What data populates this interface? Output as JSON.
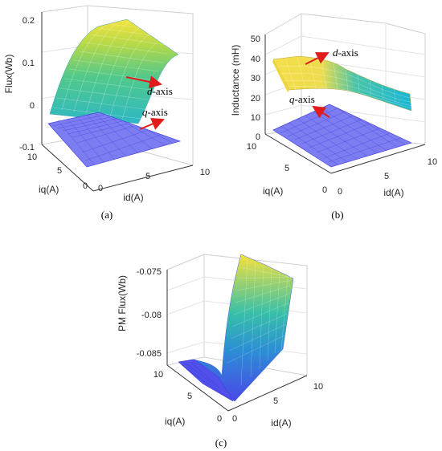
{
  "chart_data": [
    {
      "panel": "(a)",
      "type": "surface",
      "caption": "(a)",
      "xlabel": "id(A)",
      "ylabel": "iq(A)",
      "zlabel": "Flux(Wb)",
      "xlim": [
        0,
        10
      ],
      "ylim": [
        0,
        10
      ],
      "zlim": [
        -0.1,
        0.2
      ],
      "xticks": [
        "0",
        "5",
        "10"
      ],
      "yticks": [
        "0",
        "5",
        "10"
      ],
      "zticks": [
        "-0.1",
        "0",
        "0.1",
        "0.2"
      ],
      "grid": true,
      "annotations": [
        {
          "italic": "d",
          "text": "-axis",
          "points_to": "d-axis flux surface"
        },
        {
          "italic": "q",
          "text": "-axis",
          "points_to": "q-axis flux surface"
        }
      ],
      "series": [
        {
          "name": "d-axis",
          "function": "rises from about 0.0 at id=0 to about 0.16 at id=10, saturating above id≈6; nearly independent of iq",
          "id_samples": [
            0,
            2,
            4,
            6,
            8,
            10
          ],
          "flux_Wb": [
            0.0,
            0.07,
            0.12,
            0.15,
            0.16,
            0.165
          ]
        },
        {
          "name": "q-axis",
          "function": "flat plane at about -0.05 Wb across id and iq",
          "id_samples": [
            0,
            10
          ],
          "flux_Wb": [
            -0.05,
            -0.05
          ]
        }
      ]
    },
    {
      "panel": "(b)",
      "type": "surface",
      "caption": "(b)",
      "xlabel": "id(A)",
      "ylabel": "iq(A)",
      "zlabel": "Inductance (mH)",
      "xlim": [
        0,
        10
      ],
      "ylim": [
        0,
        10
      ],
      "zlim": [
        0,
        50
      ],
      "xticks": [
        "0",
        "5",
        "10"
      ],
      "yticks": [
        "0",
        "5",
        "10"
      ],
      "zticks": [
        "0",
        "10",
        "20",
        "30",
        "40",
        "50"
      ],
      "grid": true,
      "annotations": [
        {
          "italic": "d",
          "text": "-axis",
          "points_to": "d-axis inductance surface"
        },
        {
          "italic": "q",
          "text": "-axis",
          "points_to": "q-axis inductance surface"
        }
      ],
      "series": [
        {
          "name": "d-axis",
          "function": "about 40 mH at low id, decreasing to about 25 mH at id=10",
          "id_samples": [
            0,
            2,
            4,
            6,
            8,
            10
          ],
          "L_mH": [
            40,
            40,
            36,
            31,
            27,
            24
          ]
        },
        {
          "name": "q-axis",
          "function": "flat plane at about 4 mH",
          "id_samples": [
            0,
            10
          ],
          "L_mH": [
            4,
            4
          ]
        }
      ]
    },
    {
      "panel": "(c)",
      "type": "surface",
      "caption": "(c)",
      "xlabel": "id(A)",
      "ylabel": "iq(A)",
      "zlabel": "PM Flux(Wb)",
      "xlim": [
        0,
        10
      ],
      "ylim": [
        0,
        10
      ],
      "zlim": [
        -0.087,
        -0.074
      ],
      "xticks": [
        "0",
        "5",
        "10"
      ],
      "yticks": [
        "0",
        "5",
        "10"
      ],
      "zticks": [
        "-0.085",
        "-0.08",
        "-0.075"
      ],
      "grid": true,
      "series": [
        {
          "name": "PM flux",
          "function": "near -0.0855 Wb at id=0, rising steeply to about -0.0745 Wb near id≈1 and staying flat to id=10",
          "id_samples": [
            0,
            0.5,
            1,
            2,
            5,
            10
          ],
          "flux_Wb": [
            -0.0855,
            -0.082,
            -0.0755,
            -0.0745,
            -0.0745,
            -0.0745
          ]
        }
      ]
    }
  ]
}
